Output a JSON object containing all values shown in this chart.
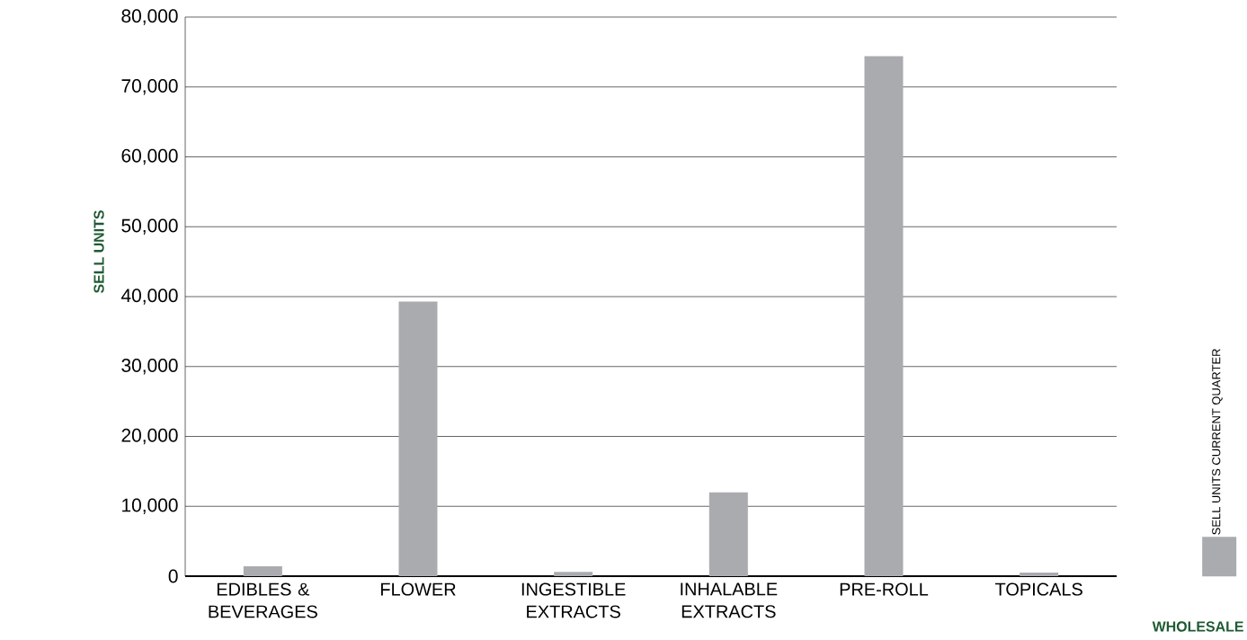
{
  "chart_data": {
    "type": "bar",
    "ylabel": "SELL UNITS",
    "legend_title": "WHOLESALE",
    "legend": "right",
    "categories": [
      "EDIBLES & BEVERAGES",
      "FLOWER",
      "INGESTIBLE EXTRACTS",
      "INHALABLE EXTRACTS",
      "PRE-ROLL",
      "TOPICALS"
    ],
    "series": [
      {
        "name": "SELL UNITS CURRENT QUARTER",
        "color": "#aaabaf",
        "values": [
          1400,
          39300,
          600,
          12000,
          74400,
          500
        ]
      }
    ],
    "ylim": [
      0,
      80000
    ],
    "yticks": [
      {
        "value": 0,
        "label": "0"
      },
      {
        "value": 10000,
        "label": "10,000"
      },
      {
        "value": 20000,
        "label": "20,000"
      },
      {
        "value": 30000,
        "label": "30,000"
      },
      {
        "value": 40000,
        "label": "40,000"
      },
      {
        "value": 50000,
        "label": "50,000"
      },
      {
        "value": 60000,
        "label": "60,000"
      },
      {
        "value": 70000,
        "label": "70,000"
      },
      {
        "value": 80000,
        "label": "80,000"
      }
    ],
    "grid": "y"
  }
}
